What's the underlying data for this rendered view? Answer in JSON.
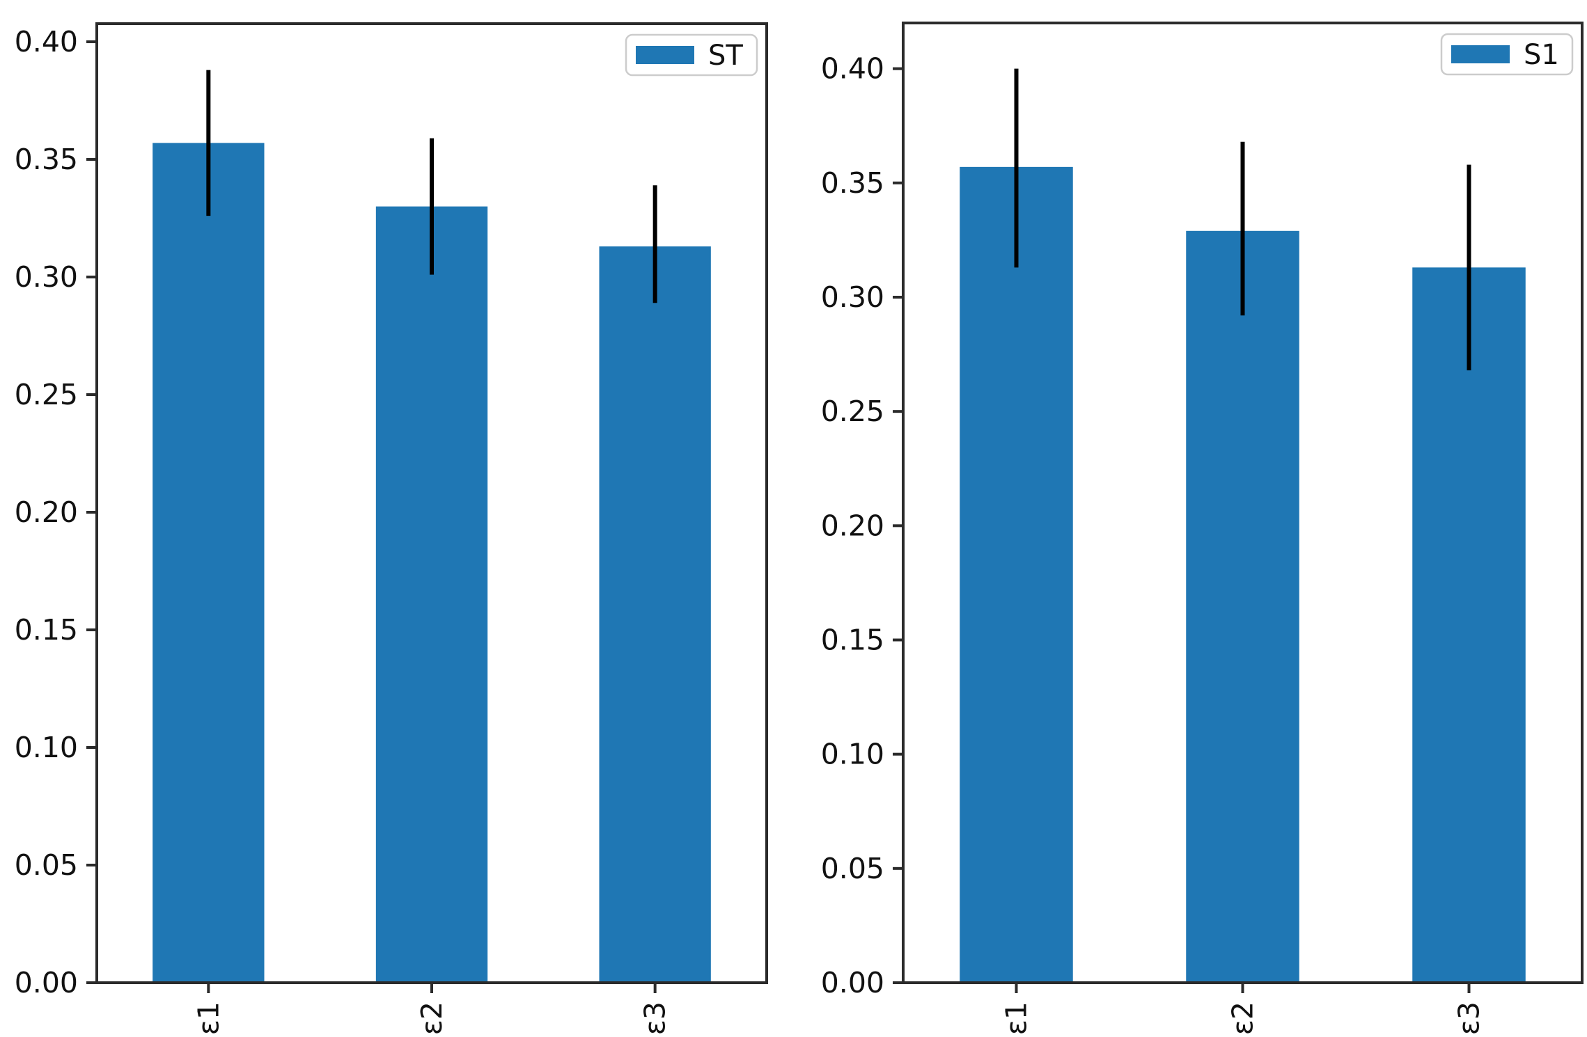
{
  "style": {
    "background": "#ffffff",
    "bar_color": "#1f77b4",
    "error_color": "#000000",
    "axis_color": "#2b2b2b",
    "text_color": "#111111",
    "legend_border_color": "#cccccc",
    "legend_background": "#ffffff"
  },
  "chart_data": [
    {
      "type": "bar",
      "title": "",
      "xlabel": "",
      "ylabel": "",
      "grid": false,
      "legend_label": "ST",
      "legend_position": "upper right",
      "categories": [
        "ε1",
        "ε2",
        "ε3"
      ],
      "values": [
        0.357,
        0.33,
        0.313
      ],
      "error_low": [
        0.326,
        0.301,
        0.289
      ],
      "error_high": [
        0.388,
        0.359,
        0.339
      ],
      "ylim": [
        0.0,
        0.4077
      ],
      "yticks": [
        0.0,
        0.05,
        0.1,
        0.15,
        0.2,
        0.25,
        0.3,
        0.35,
        0.4
      ],
      "ytick_labels": [
        "0.00",
        "0.05",
        "0.10",
        "0.15",
        "0.20",
        "0.25",
        "0.30",
        "0.35",
        "0.40"
      ],
      "xtick_rotation": 90,
      "bar_width_fraction": 0.5
    },
    {
      "type": "bar",
      "title": "",
      "xlabel": "",
      "ylabel": "",
      "grid": false,
      "legend_label": "S1",
      "legend_position": "upper right",
      "categories": [
        "ε1",
        "ε2",
        "ε3"
      ],
      "values": [
        0.357,
        0.329,
        0.313
      ],
      "error_low": [
        0.313,
        0.292,
        0.268
      ],
      "error_high": [
        0.4,
        0.368,
        0.358
      ],
      "ylim": [
        0.0,
        0.42
      ],
      "yticks": [
        0.0,
        0.05,
        0.1,
        0.15,
        0.2,
        0.25,
        0.3,
        0.35,
        0.4
      ],
      "ytick_labels": [
        "0.00",
        "0.05",
        "0.10",
        "0.15",
        "0.20",
        "0.25",
        "0.30",
        "0.35",
        "0.40"
      ],
      "xtick_rotation": 90,
      "bar_width_fraction": 0.5
    }
  ]
}
